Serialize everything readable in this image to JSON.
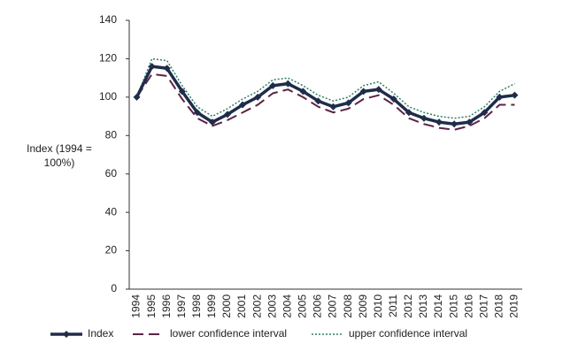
{
  "chart_data": {
    "type": "line",
    "y_label": "Index (1994 = 100%)",
    "categories": [
      "1994",
      "1995",
      "1996",
      "1997",
      "1998",
      "1999",
      "2000",
      "2001",
      "2002",
      "2003",
      "2004",
      "2005",
      "2006",
      "2007",
      "2008",
      "2009",
      "2010",
      "2011",
      "2012",
      "2013",
      "2014",
      "2015",
      "2016",
      "2017",
      "2018",
      "2019"
    ],
    "series": [
      {
        "name": "Index",
        "color": "#1f2d4a",
        "style": "solid",
        "marker": true,
        "values": [
          100,
          116,
          115,
          103,
          92,
          87,
          91,
          96,
          100,
          106,
          107,
          103,
          98,
          95,
          97,
          103,
          104,
          99,
          92,
          89,
          87,
          86,
          87,
          92,
          100,
          101
        ]
      },
      {
        "name": "lower confidence interval",
        "color": "#5c2346",
        "style": "dashed",
        "marker": false,
        "values": [
          100,
          112,
          111,
          99,
          89,
          85,
          88,
          92,
          96,
          102,
          104,
          100,
          95,
          92,
          94,
          99,
          101,
          96,
          89,
          86,
          84,
          83,
          85,
          89,
          96,
          96
        ]
      },
      {
        "name": "upper confidence interval",
        "color": "#2e7d6a",
        "style": "dotted",
        "marker": false,
        "values": [
          100,
          120,
          119,
          106,
          95,
          90,
          94,
          99,
          103,
          109,
          110,
          106,
          101,
          98,
          100,
          106,
          108,
          102,
          95,
          92,
          90,
          89,
          90,
          95,
          103,
          107
        ]
      }
    ],
    "ylim": [
      0,
      140
    ],
    "yticks": [
      0,
      20,
      40,
      60,
      80,
      100,
      120,
      140
    ],
    "grid": false,
    "legend": "bottom"
  }
}
